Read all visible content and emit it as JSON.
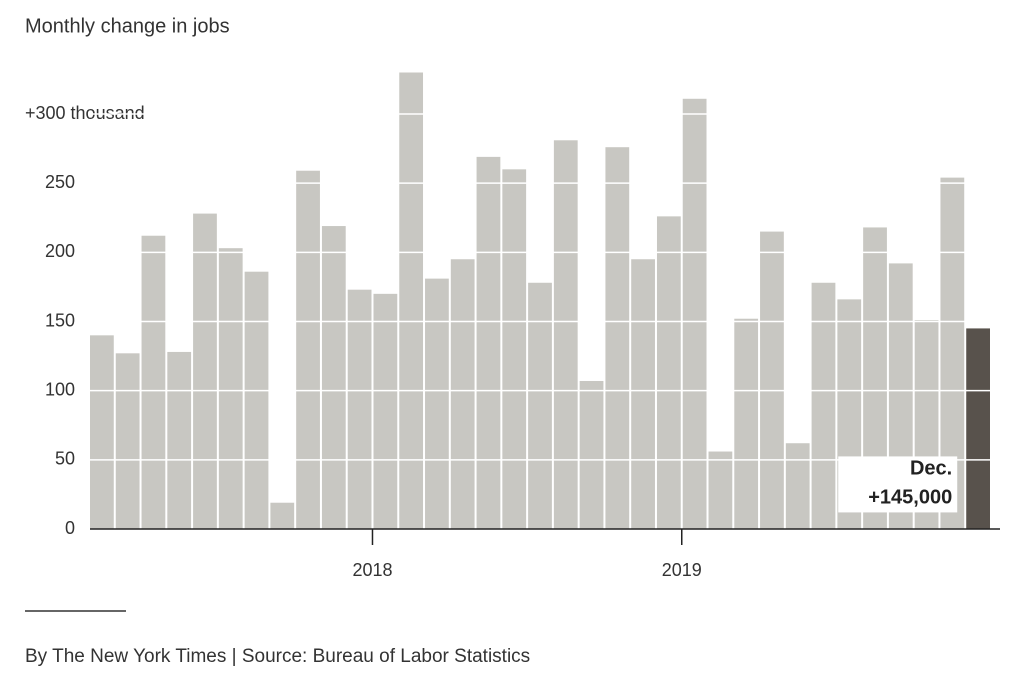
{
  "chart_data": {
    "type": "bar",
    "title": "Monthly change in jobs",
    "source": "By The New York Times | Source: Bureau of Labor Statistics",
    "annotation": "Dec.",
    "categories": [
      null,
      null,
      null,
      null,
      null,
      null,
      null,
      null,
      null,
      null,
      null,
      "2018",
      null,
      null,
      null,
      null,
      null,
      null,
      null,
      null,
      null,
      null,
      null,
      "2019",
      null,
      null,
      null,
      null,
      null,
      null,
      null,
      null,
      null,
      null,
      null
    ],
    "values": [
      140,
      127,
      212,
      128,
      228,
      203,
      186,
      19,
      259,
      219,
      173,
      170,
      330,
      181,
      195,
      269,
      260,
      178,
      281,
      107,
      276,
      195,
      226,
      311,
      56,
      152,
      215,
      62,
      178,
      166,
      218,
      192,
      151,
      254,
      145
    ],
    "value_labels": [
      null,
      null,
      null,
      null,
      null,
      null,
      null,
      null,
      null,
      null,
      null,
      null,
      null,
      null,
      null,
      null,
      null,
      null,
      null,
      null,
      null,
      null,
      null,
      null,
      null,
      null,
      null,
      null,
      null,
      null,
      null,
      null,
      null,
      null,
      "+145,000"
    ],
    "color": "#c8c7c2",
    "highlight_color": "#58524c",
    "ylim": [
      0,
      330
    ],
    "yticks": [
      0,
      50,
      100,
      150,
      200,
      250,
      {
        "value": 300,
        "label": "+300 thousand"
      }
    ],
    "grid": true
  }
}
